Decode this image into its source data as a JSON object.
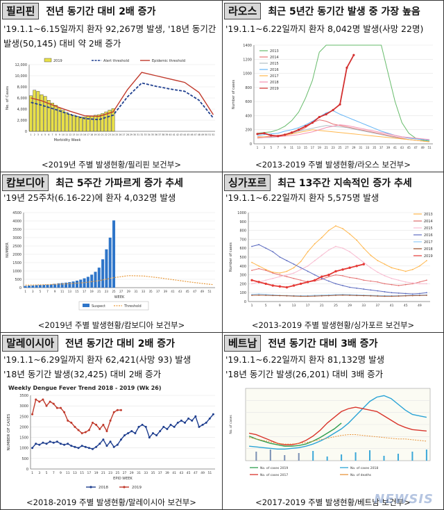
{
  "panels": [
    {
      "country": "필리핀",
      "headline": "전년 동기간 대비 2배 증가",
      "desc_lines": [
        "'19.1.1~6.15일까지 환자 92,267명 발생, '18년 동기간",
        "발생(50,145) 대비 약 2배 증가"
      ],
      "caption": "<2019년 주별 발생현황/필리핀 보건부>"
    },
    {
      "country": "라오스",
      "headline": "최근 5년간 동기간 발생 중 가장 높음",
      "desc_lines": [
        "'19.1.1~6.22일까지 환자 8,042명 발생(사망 22명)"
      ],
      "caption": "<2013-2019 주별 발생현황/라오스 보건부>"
    },
    {
      "country": "캄보디아",
      "headline": "최근 5주간 가파르게 증가 추세",
      "desc_lines": [
        "'19년 25주차(6.16-22)에 환자 4,032명 발생"
      ],
      "caption": "<2019년 주별 발생현황/캄보디아 보건부>"
    },
    {
      "country": "싱가포르",
      "headline": "최근 13주간 지속적인 증가 추세",
      "desc_lines": [
        "'19.1.1~6.22일까지 환자 5,575명 발생"
      ],
      "caption": "<2013-2019 주별 발생현황/싱가포르 보건부>"
    },
    {
      "country": "말레이시아",
      "headline": "전년 동기간 대비 2배 증가",
      "desc_lines": [
        "'19.1.1~6.29일까지 환자 62,421(사망 93) 발생",
        "'18년 동기간 발생(32,425) 대비 2배 증가"
      ],
      "caption": "<2018-2019 주별 발생현황/말레이시아 보건부>"
    },
    {
      "country": "베트남",
      "headline": "전년 동기간 대비 3배 증가",
      "desc_lines": [
        "'19.1.1~6.22일까지 환자 81,132명 발생",
        "'18년 동기간 발생(26,201) 대비 3배 증가"
      ],
      "caption": "<2017-2019 주별 발생현황/베트남 보건부>"
    }
  ],
  "watermark": "NEWSIS",
  "chart_data": [
    {
      "type": "bar",
      "ylabel": "No. of Cases",
      "xlabel": "Morbidity Week",
      "ylim": [
        0,
        12000
      ],
      "yticks": [
        "0",
        "2,000",
        "4,000",
        "6,000",
        "8,000",
        "10,000",
        "12,000"
      ],
      "legend": [
        "2019",
        "Alert threshold",
        "Epidemic threshold"
      ],
      "x": [
        1,
        2,
        3,
        4,
        5,
        6,
        7,
        8,
        9,
        10,
        11,
        12,
        13,
        14,
        15,
        16,
        17,
        18,
        19,
        20,
        21,
        22,
        23,
        24
      ],
      "bars_2019": [
        6400,
        7400,
        7200,
        6600,
        6300,
        5600,
        5100,
        4700,
        4200,
        3800,
        3400,
        3100,
        2900,
        2700,
        2600,
        2600,
        2700,
        2800,
        2900,
        3000,
        3200,
        3500,
        3800,
        4100
      ],
      "alert_x": [
        1,
        4,
        8,
        12,
        16,
        20,
        24,
        28,
        32,
        36,
        40,
        44,
        48,
        52
      ],
      "alert_threshold": [
        5200,
        4700,
        3900,
        3000,
        2300,
        2100,
        2900,
        6200,
        8700,
        8100,
        7600,
        7200,
        5600,
        2400
      ],
      "epidemic_threshold": [
        6000,
        5500,
        4500,
        3600,
        2800,
        2700,
        3500,
        7500,
        10600,
        10000,
        9400,
        8800,
        7000,
        3000
      ],
      "colors": {
        "bars": "#e8e048",
        "alert": "#1f3f8f",
        "epidemic": "#c0392b"
      }
    },
    {
      "type": "line",
      "ylabel": "Number of cases",
      "ylim": [
        0,
        1400
      ],
      "yticks": [
        "0",
        "200",
        "400",
        "600",
        "800",
        "1000",
        "1200",
        "1400"
      ],
      "series": [
        {
          "name": "2013",
          "color": "#66bb6a",
          "values": [
            150,
            160,
            170,
            200,
            250,
            330,
            450,
            650,
            900,
            1300,
            1500,
            1500,
            1500,
            1500,
            1500,
            1500,
            1500,
            1500,
            1450,
            1000,
            600,
            300,
            150,
            80,
            50,
            40
          ]
        },
        {
          "name": "2014",
          "color": "#e57373",
          "values": [
            100,
            100,
            110,
            120,
            130,
            150,
            180,
            230,
            300,
            340,
            320,
            280,
            260,
            240,
            220,
            200,
            180,
            160,
            140,
            120,
            100,
            80,
            60,
            50,
            40,
            30
          ]
        },
        {
          "name": "2015",
          "color": "#b0bec5",
          "values": [
            80,
            90,
            90,
            100,
            120,
            150,
            180,
            200,
            220,
            240,
            260,
            250,
            240,
            230,
            210,
            190,
            170,
            150,
            130,
            110,
            90,
            70,
            60,
            50,
            40,
            30
          ]
        },
        {
          "name": "2016",
          "color": "#64b5f6",
          "values": [
            120,
            130,
            140,
            150,
            180,
            200,
            230,
            270,
            320,
            380,
            440,
            470,
            420,
            380,
            340,
            300,
            260,
            220,
            180,
            150,
            120,
            100,
            80,
            70,
            60,
            50
          ]
        },
        {
          "name": "2017",
          "color": "#ffb74d",
          "values": [
            90,
            100,
            100,
            110,
            120,
            140,
            160,
            180,
            200,
            190,
            180,
            170,
            160,
            150,
            140,
            130,
            120,
            110,
            100,
            90,
            80,
            70,
            60,
            50,
            40,
            30
          ]
        },
        {
          "name": "2018",
          "color": "#f48fb1",
          "values": [
            80,
            90,
            100,
            100,
            110,
            120,
            130,
            150,
            170,
            200,
            230,
            250,
            270,
            260,
            240,
            220,
            200,
            180,
            160,
            140,
            120,
            100,
            90,
            80,
            70,
            60
          ]
        },
        {
          "name": "2019",
          "color": "#d32f2f",
          "values": [
            140,
            150,
            120,
            110,
            130,
            160,
            200,
            250,
            300,
            380,
            420,
            480,
            560,
            1080,
            1260
          ]
        }
      ]
    },
    {
      "type": "bar",
      "ylabel": "NUMBER",
      "xlabel": "WEEK",
      "ylim": [
        0,
        4500
      ],
      "yticks": [
        "0",
        "500",
        "1000",
        "1500",
        "2000",
        "2500",
        "3000",
        "3500",
        "4000",
        "4500"
      ],
      "legend": [
        "Suspect",
        "Threshold"
      ],
      "x": [
        1,
        2,
        3,
        4,
        5,
        6,
        7,
        8,
        9,
        10,
        11,
        12,
        13,
        14,
        15,
        16,
        17,
        18,
        19,
        20,
        21,
        22,
        23,
        24,
        25
      ],
      "suspect": [
        100,
        120,
        130,
        150,
        160,
        170,
        180,
        200,
        230,
        260,
        280,
        300,
        330,
        370,
        420,
        480,
        560,
        650,
        780,
        950,
        1200,
        1700,
        2300,
        3000,
        4032
      ],
      "threshold_x": [
        1,
        5,
        9,
        13,
        17,
        21,
        25,
        29,
        33,
        37,
        41,
        45,
        49,
        52
      ],
      "threshold": [
        150,
        170,
        200,
        240,
        300,
        420,
        600,
        720,
        700,
        600,
        480,
        360,
        250,
        180
      ],
      "colors": {
        "suspect": "#2e75c9",
        "threshold": "#e99a3c"
      }
    },
    {
      "type": "line",
      "ylabel": "Number of cases",
      "ylim": [
        0,
        1000
      ],
      "yticks": [
        "0",
        "100",
        "200",
        "300",
        "400",
        "500",
        "600",
        "700",
        "800",
        "900",
        "1000"
      ],
      "series": [
        {
          "name": "2013",
          "color": "#ffb74d",
          "values": [
            440,
            400,
            360,
            330,
            320,
            340,
            380,
            450,
            560,
            650,
            720,
            800,
            850,
            820,
            760,
            690,
            600,
            520,
            460,
            420,
            380,
            360,
            340,
            360,
            400,
            460
          ]
        },
        {
          "name": "2014",
          "color": "#e57373",
          "values": [
            350,
            370,
            350,
            320,
            300,
            280,
            260,
            240,
            220,
            230,
            250,
            280,
            300,
            290,
            270,
            260,
            240,
            230,
            220,
            200,
            190,
            180,
            190,
            200,
            220,
            240
          ]
        },
        {
          "name": "2015",
          "color": "#f8bbd0",
          "values": [
            200,
            220,
            240,
            260,
            280,
            300,
            320,
            360,
            400,
            460,
            520,
            580,
            620,
            600,
            560,
            500,
            440,
            380,
            330,
            290,
            260,
            240,
            220,
            210,
            200,
            200
          ]
        },
        {
          "name": "2016",
          "color": "#5c6bc0",
          "values": [
            620,
            640,
            600,
            560,
            500,
            460,
            420,
            380,
            340,
            300,
            260,
            230,
            200,
            180,
            160,
            150,
            140,
            130,
            120,
            110,
            100,
            95,
            90,
            85,
            90,
            100
          ]
        },
        {
          "name": "2017",
          "color": "#90caf9",
          "values": [
            80,
            85,
            80,
            75,
            70,
            68,
            66,
            65,
            66,
            70,
            72,
            75,
            78,
            80,
            78,
            75,
            72,
            70,
            68,
            66,
            65,
            66,
            68,
            70,
            72,
            75
          ]
        },
        {
          "name": "2018",
          "color": "#a0522d",
          "values": [
            70,
            72,
            70,
            68,
            66,
            64,
            62,
            60,
            60,
            62,
            64,
            66,
            70,
            72,
            70,
            68,
            66,
            64,
            62,
            60,
            60,
            62,
            64,
            66,
            68,
            70
          ]
        },
        {
          "name": "2019",
          "color": "#e53935",
          "values": [
            240,
            220,
            200,
            180,
            170,
            160,
            180,
            200,
            220,
            240,
            280,
            300,
            340,
            360,
            380,
            400,
            420
          ]
        }
      ]
    },
    {
      "type": "line",
      "title": "Weekly Dengue Fever Trend 2018 - 2019 (Wk 26)",
      "ylabel": "NUMBER OF CASES",
      "xlabel": "EPID WEEK",
      "ylim": [
        0,
        3500
      ],
      "yticks": [
        "0",
        "500",
        "1000",
        "1500",
        "2000",
        "2500",
        "3000",
        "3500"
      ],
      "xticks": [
        "1",
        "3",
        "5",
        "7",
        "9",
        "11",
        "13",
        "15",
        "17",
        "19",
        "21",
        "23",
        "25",
        "27",
        "29",
        "31",
        "33",
        "35",
        "37",
        "39",
        "41",
        "43",
        "45",
        "47",
        "49",
        "51"
      ],
      "series": [
        {
          "name": "2018",
          "color": "#1f3f8f",
          "values": [
            1000,
            1200,
            1150,
            1250,
            1200,
            1300,
            1250,
            1300,
            1200,
            1150,
            1200,
            1100,
            1050,
            1000,
            1100,
            1050,
            1000,
            950,
            1050,
            1200,
            1400,
            1100,
            1300,
            1050,
            1150,
            1400,
            1600,
            1700,
            1800,
            1700,
            2000,
            2100,
            2000,
            1500,
            1700,
            1600,
            1800,
            2000,
            1900,
            2100,
            2000,
            2200,
            2300,
            2200,
            2400,
            2300,
            2500,
            2000,
            2100,
            2200,
            2400,
            2600
          ]
        },
        {
          "name": "2019",
          "color": "#c0392b",
          "values": [
            2600,
            3300,
            3200,
            3300,
            3000,
            3200,
            3100,
            2900,
            2900,
            2700,
            2300,
            2200,
            2000,
            1850,
            1700,
            1750,
            1850,
            2200,
            2100,
            1900,
            2100,
            1800,
            2300,
            2700,
            2800,
            2800
          ]
        }
      ]
    },
    {
      "type": "line",
      "ylabel": "No. of cases",
      "note": "multi-series with bars for deaths",
      "series": [
        {
          "name": "No. of cases 2019",
          "color": "#2e9d4f",
          "values": [
            340,
            300,
            270,
            240,
            220,
            200,
            200,
            210,
            230,
            270,
            320,
            380,
            440,
            520
          ]
        },
        {
          "name": "No. of cases 2018",
          "color": "#29a3d6",
          "values": [
            200,
            190,
            180,
            170,
            160,
            160,
            170,
            180,
            200,
            230,
            270,
            320,
            380,
            440,
            520,
            620,
            720,
            820,
            880,
            900,
            860,
            780,
            700,
            640,
            620,
            600
          ]
        },
        {
          "name": "No. of cases 2017",
          "color": "#d9342b",
          "values": [
            380,
            360,
            320,
            280,
            240,
            220,
            220,
            240,
            280,
            340,
            420,
            520,
            600,
            680,
            720,
            740,
            720,
            700,
            680,
            620,
            560,
            500,
            460,
            430,
            420,
            410
          ]
        },
        {
          "name": "No. of deaths",
          "color": "#e8943c",
          "values": [
            320,
            300,
            280,
            260,
            240,
            230,
            230,
            240,
            250,
            270,
            290,
            310,
            330,
            350,
            360,
            360,
            350,
            340,
            330,
            320,
            310,
            300,
            300,
            290,
            280,
            270
          ]
        }
      ]
    }
  ]
}
